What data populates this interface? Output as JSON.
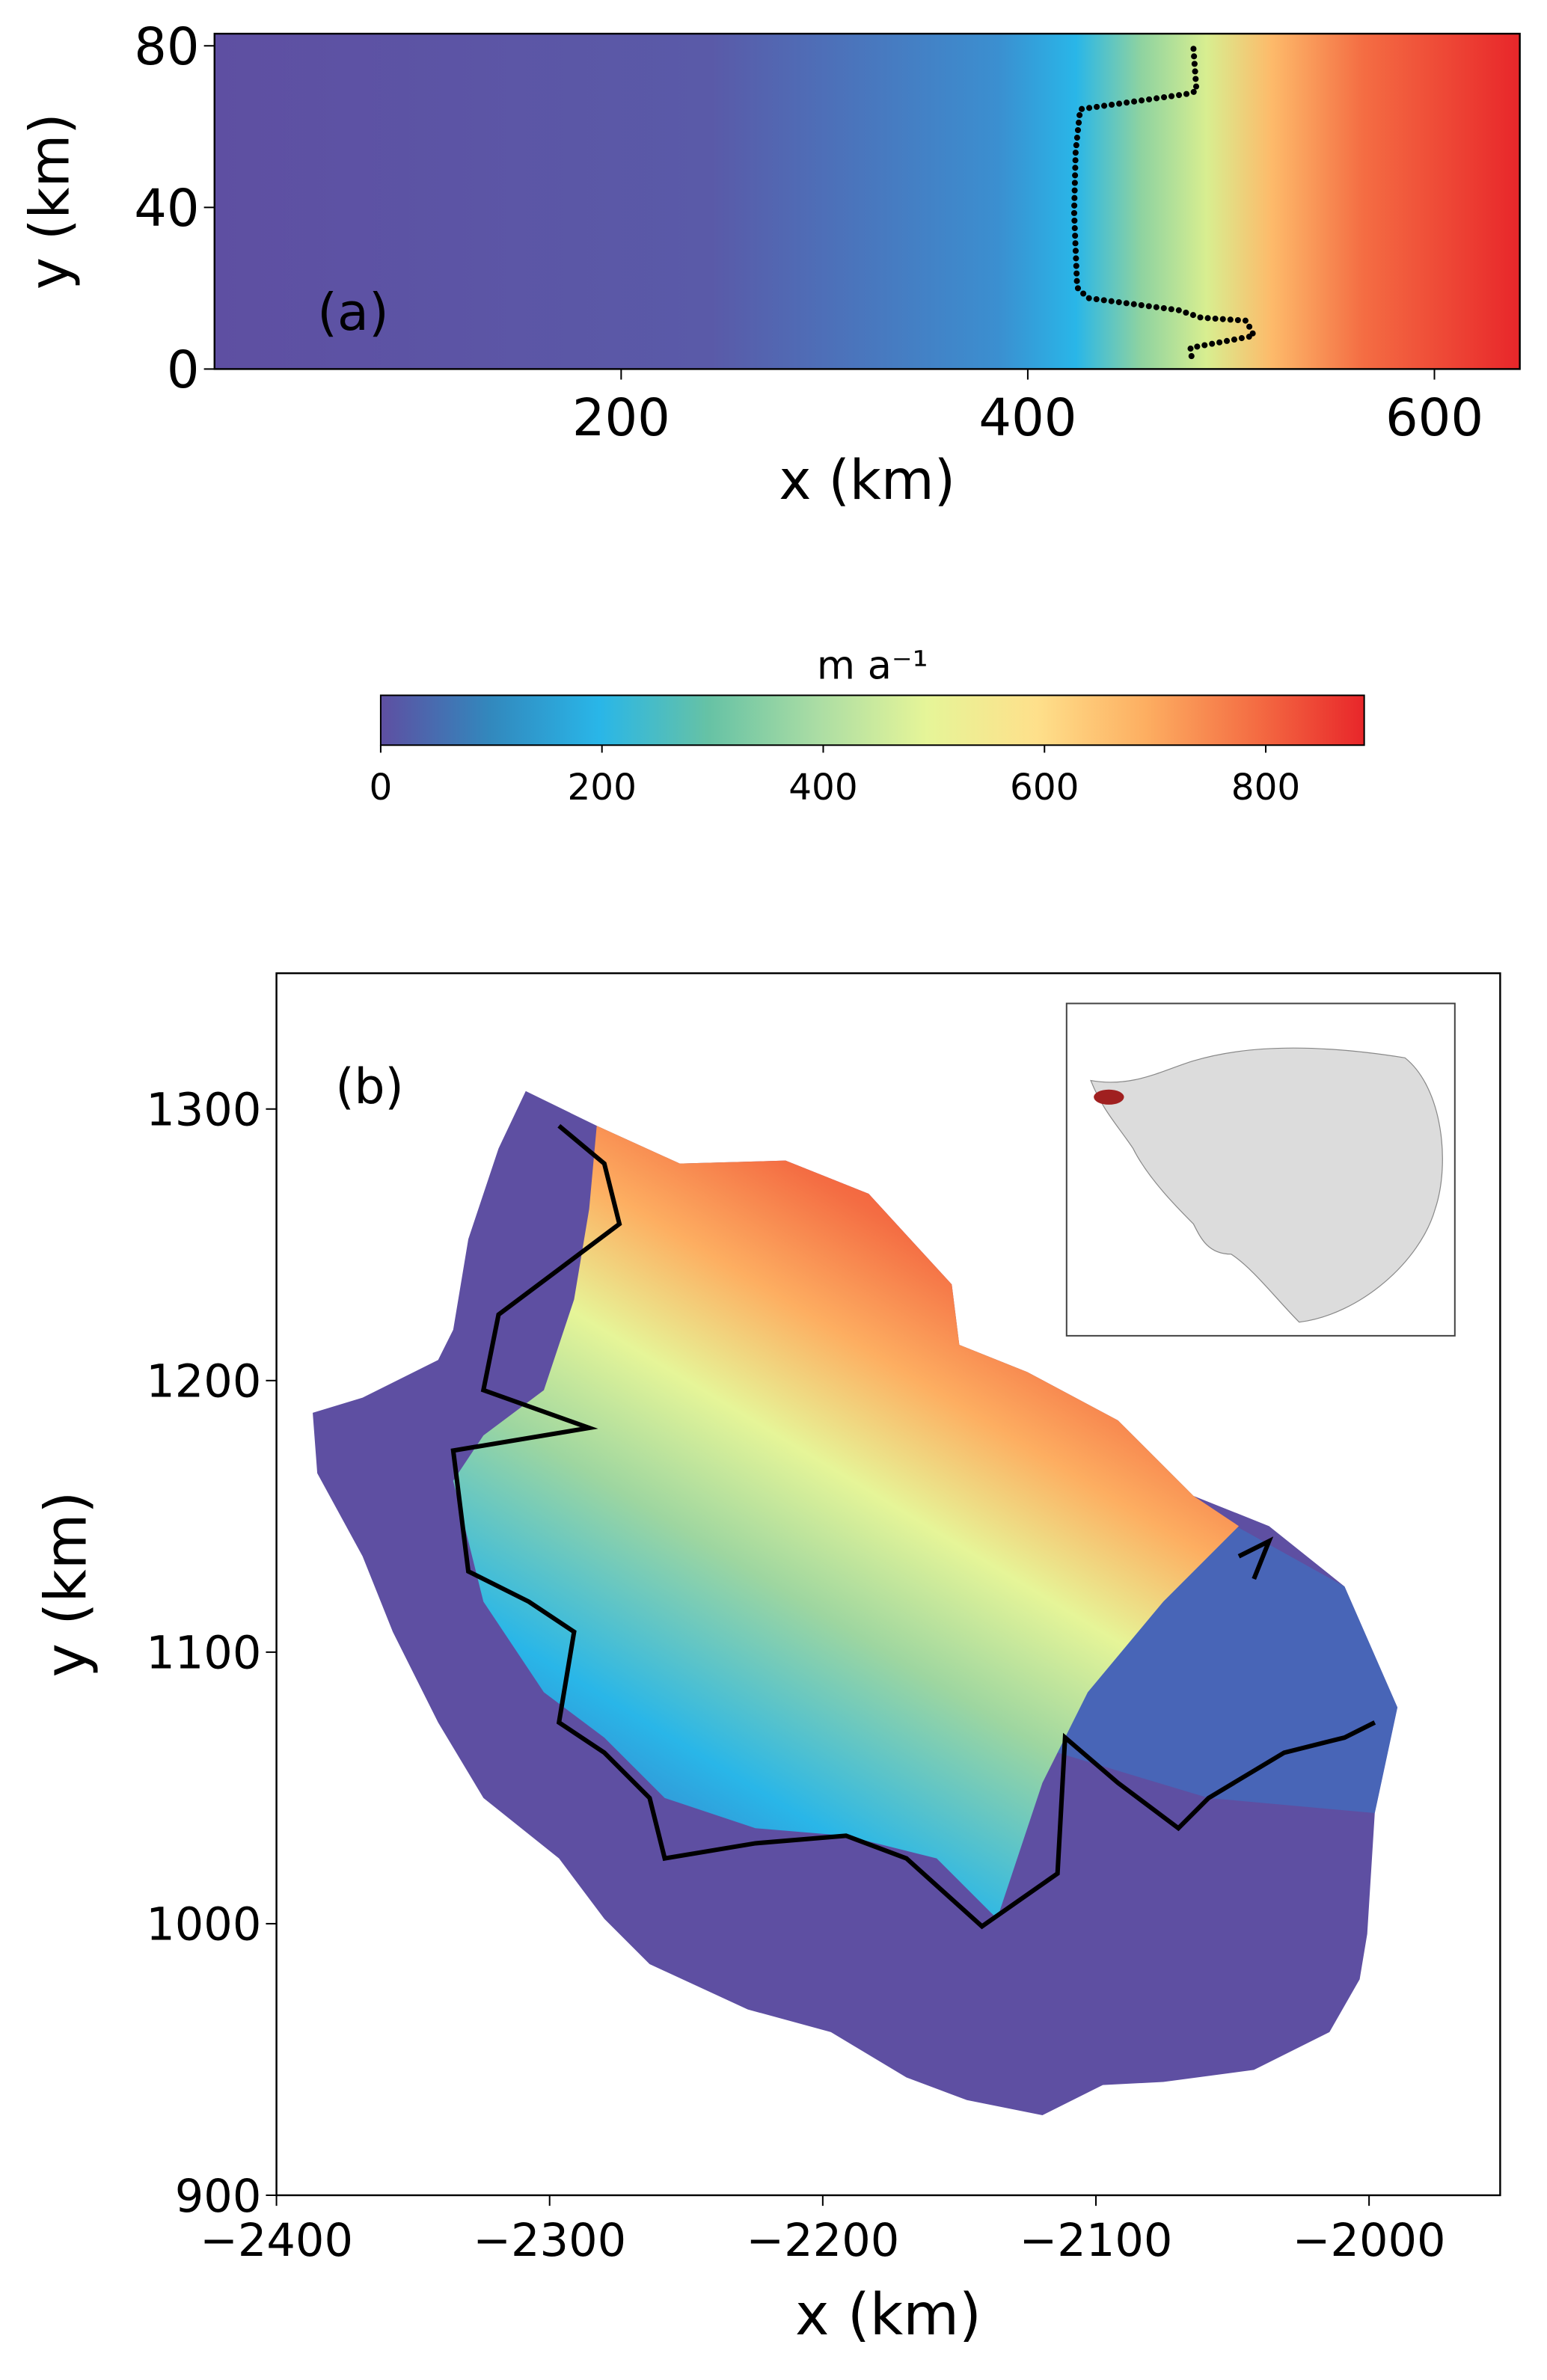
{
  "chart_data": [
    {
      "type": "field",
      "panel_label": "(a)",
      "xlabel": "x (km)",
      "ylabel": "y (km)",
      "xlim": [
        0,
        642
      ],
      "ylim": [
        0,
        83
      ],
      "xticks": [
        200,
        400,
        600
      ],
      "yticks": [
        0,
        40,
        80
      ]
    },
    {
      "type": "colorbar",
      "label": "m a⁻¹",
      "clim": [
        0,
        889
      ],
      "ticks": [
        0,
        200,
        400,
        600,
        800
      ],
      "colormap": [
        "#5e4fa2",
        "#3288bd",
        "#29b6e8",
        "#66c2a5",
        "#abdda4",
        "#e6f598",
        "#fee08b",
        "#fdae61",
        "#f46d43",
        "#e8262a"
      ]
    },
    {
      "type": "map",
      "panel_label": "(b)",
      "xlabel": "x (km)",
      "ylabel": "y (km)",
      "xlim": [
        -2400,
        -1952
      ],
      "ylim": [
        900,
        1350
      ],
      "xticks": [
        {
          "value": -2400,
          "label": "−2400"
        },
        {
          "value": -2300,
          "label": "−2300"
        },
        {
          "value": -2200,
          "label": "−2200"
        },
        {
          "value": -2100,
          "label": "−2100"
        },
        {
          "value": -2000,
          "label": "−2000"
        }
      ],
      "yticks": [
        900,
        1000,
        1100,
        1200,
        1300
      ]
    }
  ]
}
